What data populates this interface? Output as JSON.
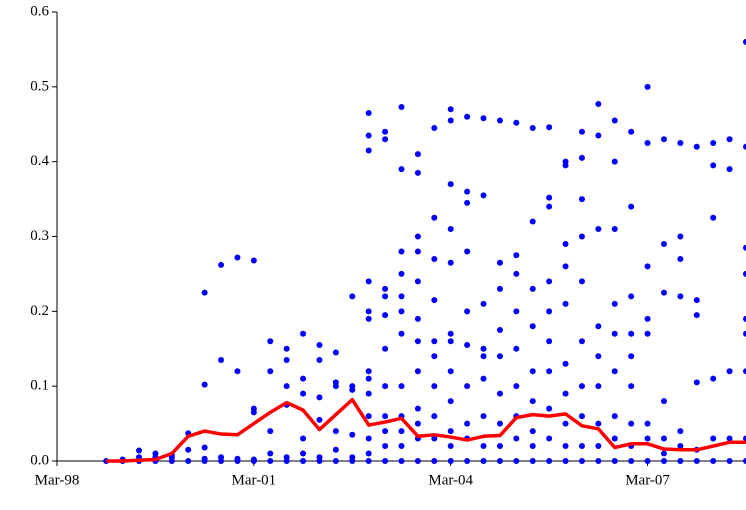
{
  "chart_data": {
    "type": "line",
    "categories": [
      "Mar-98",
      null,
      null,
      null,
      null,
      null,
      null,
      null,
      null,
      null,
      null,
      null,
      "Mar-01",
      null,
      null,
      null,
      null,
      null,
      null,
      null,
      null,
      null,
      null,
      null,
      "Mar-04",
      null,
      null,
      null,
      null,
      null,
      null,
      null,
      null,
      null,
      null,
      null,
      "Mar-07",
      null,
      null,
      null,
      null,
      null,
      null
    ],
    "ylim": [
      0,
      0.6
    ],
    "yticks": [
      {
        "value": 0,
        "label": "0.0"
      },
      0.1,
      0.2,
      0.3,
      0.4,
      0.5,
      0.6
    ],
    "grid": false,
    "series": [
      {
        "style": "line",
        "color": "#ff0000",
        "values": [
          null,
          null,
          null,
          0,
          0,
          0.001,
          0.002,
          0.01,
          0.033,
          0.04,
          0.036,
          0.035,
          0.05,
          0.065,
          0.078,
          0.068,
          0.042,
          0.062,
          0.082,
          0.048,
          0.052,
          0.057,
          0.033,
          0.035,
          0.032,
          0.028,
          0.033,
          0.034,
          0.058,
          0.062,
          0.06,
          0.063,
          0.047,
          0.043,
          0.018,
          0.023,
          0.023,
          0.016,
          0.015,
          0.015,
          0.02,
          0.025,
          0.025
        ]
      },
      {
        "style": "dots",
        "color": "#0000ff",
        "values": [
          null,
          null,
          null,
          [
            0
          ],
          [
            0,
            0.002
          ],
          [
            0,
            0.014,
            0.005
          ],
          [
            0,
            0.01,
            0.005
          ],
          [
            0,
            0.008,
            0.005
          ],
          [
            0,
            0.037,
            0.015
          ],
          [
            0.225,
            0.102,
            0.018,
            0.003,
            0
          ],
          [
            0.262,
            0.135,
            0.005,
            0
          ],
          [
            0.272,
            0.12,
            0.003,
            0
          ],
          [
            0.268,
            0.07,
            0.065,
            0.002,
            0
          ],
          [
            0.16,
            0.12,
            0.04,
            0.01,
            0
          ],
          [
            0.15,
            0.135,
            0.1,
            0.075,
            0.005,
            0
          ],
          [
            0.17,
            0.11,
            0.09,
            0.03,
            0.01,
            0
          ],
          [
            0.155,
            0.135,
            0.085,
            0.055,
            0.005,
            0
          ],
          [
            0.145,
            0.105,
            0.1,
            0.04,
            0.015,
            0
          ],
          [
            0.22,
            0.1,
            0.095,
            0.035,
            0.005,
            0
          ],
          [
            0.465,
            0.435,
            0.415,
            0.24,
            0.2,
            0.19,
            0.12,
            0.11,
            0.09,
            0.06,
            0.03,
            0.01,
            0
          ],
          [
            0.44,
            0.43,
            0.23,
            0.22,
            0.195,
            0.15,
            0.1,
            0.06,
            0.04,
            0.02,
            0
          ],
          [
            0.473,
            0.39,
            0.28,
            0.25,
            0.22,
            0.2,
            0.17,
            0.1,
            0.06,
            0.04,
            0.02,
            0
          ],
          [
            0.41,
            0.385,
            0.3,
            0.28,
            0.24,
            0.19,
            0.16,
            0.12,
            0.07,
            0.05,
            0.03,
            0
          ],
          [
            0.445,
            0.325,
            0.27,
            0.215,
            0.16,
            0.14,
            0.1,
            0.06,
            0.03,
            0
          ],
          [
            0.47,
            0.455,
            0.37,
            0.31,
            0.265,
            0.17,
            0.16,
            0.12,
            0.08,
            0.04,
            0.02,
            0
          ],
          [
            0.46,
            0.36,
            0.345,
            0.28,
            0.2,
            0.155,
            0.1,
            0.05,
            0.03,
            0
          ],
          [
            0.458,
            0.355,
            0.21,
            0.15,
            0.14,
            0.11,
            0.06,
            0.02,
            0
          ],
          [
            0.455,
            0.265,
            0.23,
            0.175,
            0.14,
            0.09,
            0.05,
            0.02,
            0
          ],
          [
            0.452,
            0.275,
            0.25,
            0.2,
            0.15,
            0.1,
            0.06,
            0.03,
            0
          ],
          [
            0.445,
            0.32,
            0.23,
            0.18,
            0.12,
            0.08,
            0.04,
            0.02,
            0
          ],
          [
            0.446,
            0.352,
            0.34,
            0.24,
            0.2,
            0.16,
            0.12,
            0.07,
            0.03,
            0
          ],
          [
            0.4,
            0.395,
            0.29,
            0.26,
            0.21,
            0.13,
            0.09,
            0.05,
            0.02,
            0
          ],
          [
            0.44,
            0.405,
            0.35,
            0.3,
            0.24,
            0.16,
            0.1,
            0.06,
            0.02,
            0
          ],
          [
            0.477,
            0.435,
            0.31,
            0.18,
            0.14,
            0.1,
            0.05,
            0.02,
            0
          ],
          [
            0.455,
            0.4,
            0.31,
            0.21,
            0.17,
            0.12,
            0.06,
            0.03,
            0
          ],
          [
            0.44,
            0.34,
            0.22,
            0.17,
            0.14,
            0.1,
            0.05,
            0.02,
            0
          ],
          [
            0.425,
            0.5,
            0.26,
            0.19,
            0.17,
            0.05,
            0.03,
            0
          ],
          [
            0.43,
            0.29,
            0.225,
            0.08,
            0.03,
            0.01,
            0
          ],
          [
            0.425,
            0.3,
            0.27,
            0.22,
            0.04,
            0.02,
            0
          ],
          [
            0.42,
            0.215,
            0.195,
            0.105,
            0.015,
            0
          ],
          [
            0.425,
            0.395,
            0.325,
            0.11,
            0.03,
            0
          ],
          [
            0.43,
            0.39,
            0.12,
            0.03,
            0
          ],
          [
            0.56,
            0.42,
            0.285,
            0.25,
            0.19,
            0.17,
            0.12,
            0.03,
            0
          ]
        ]
      }
    ]
  }
}
